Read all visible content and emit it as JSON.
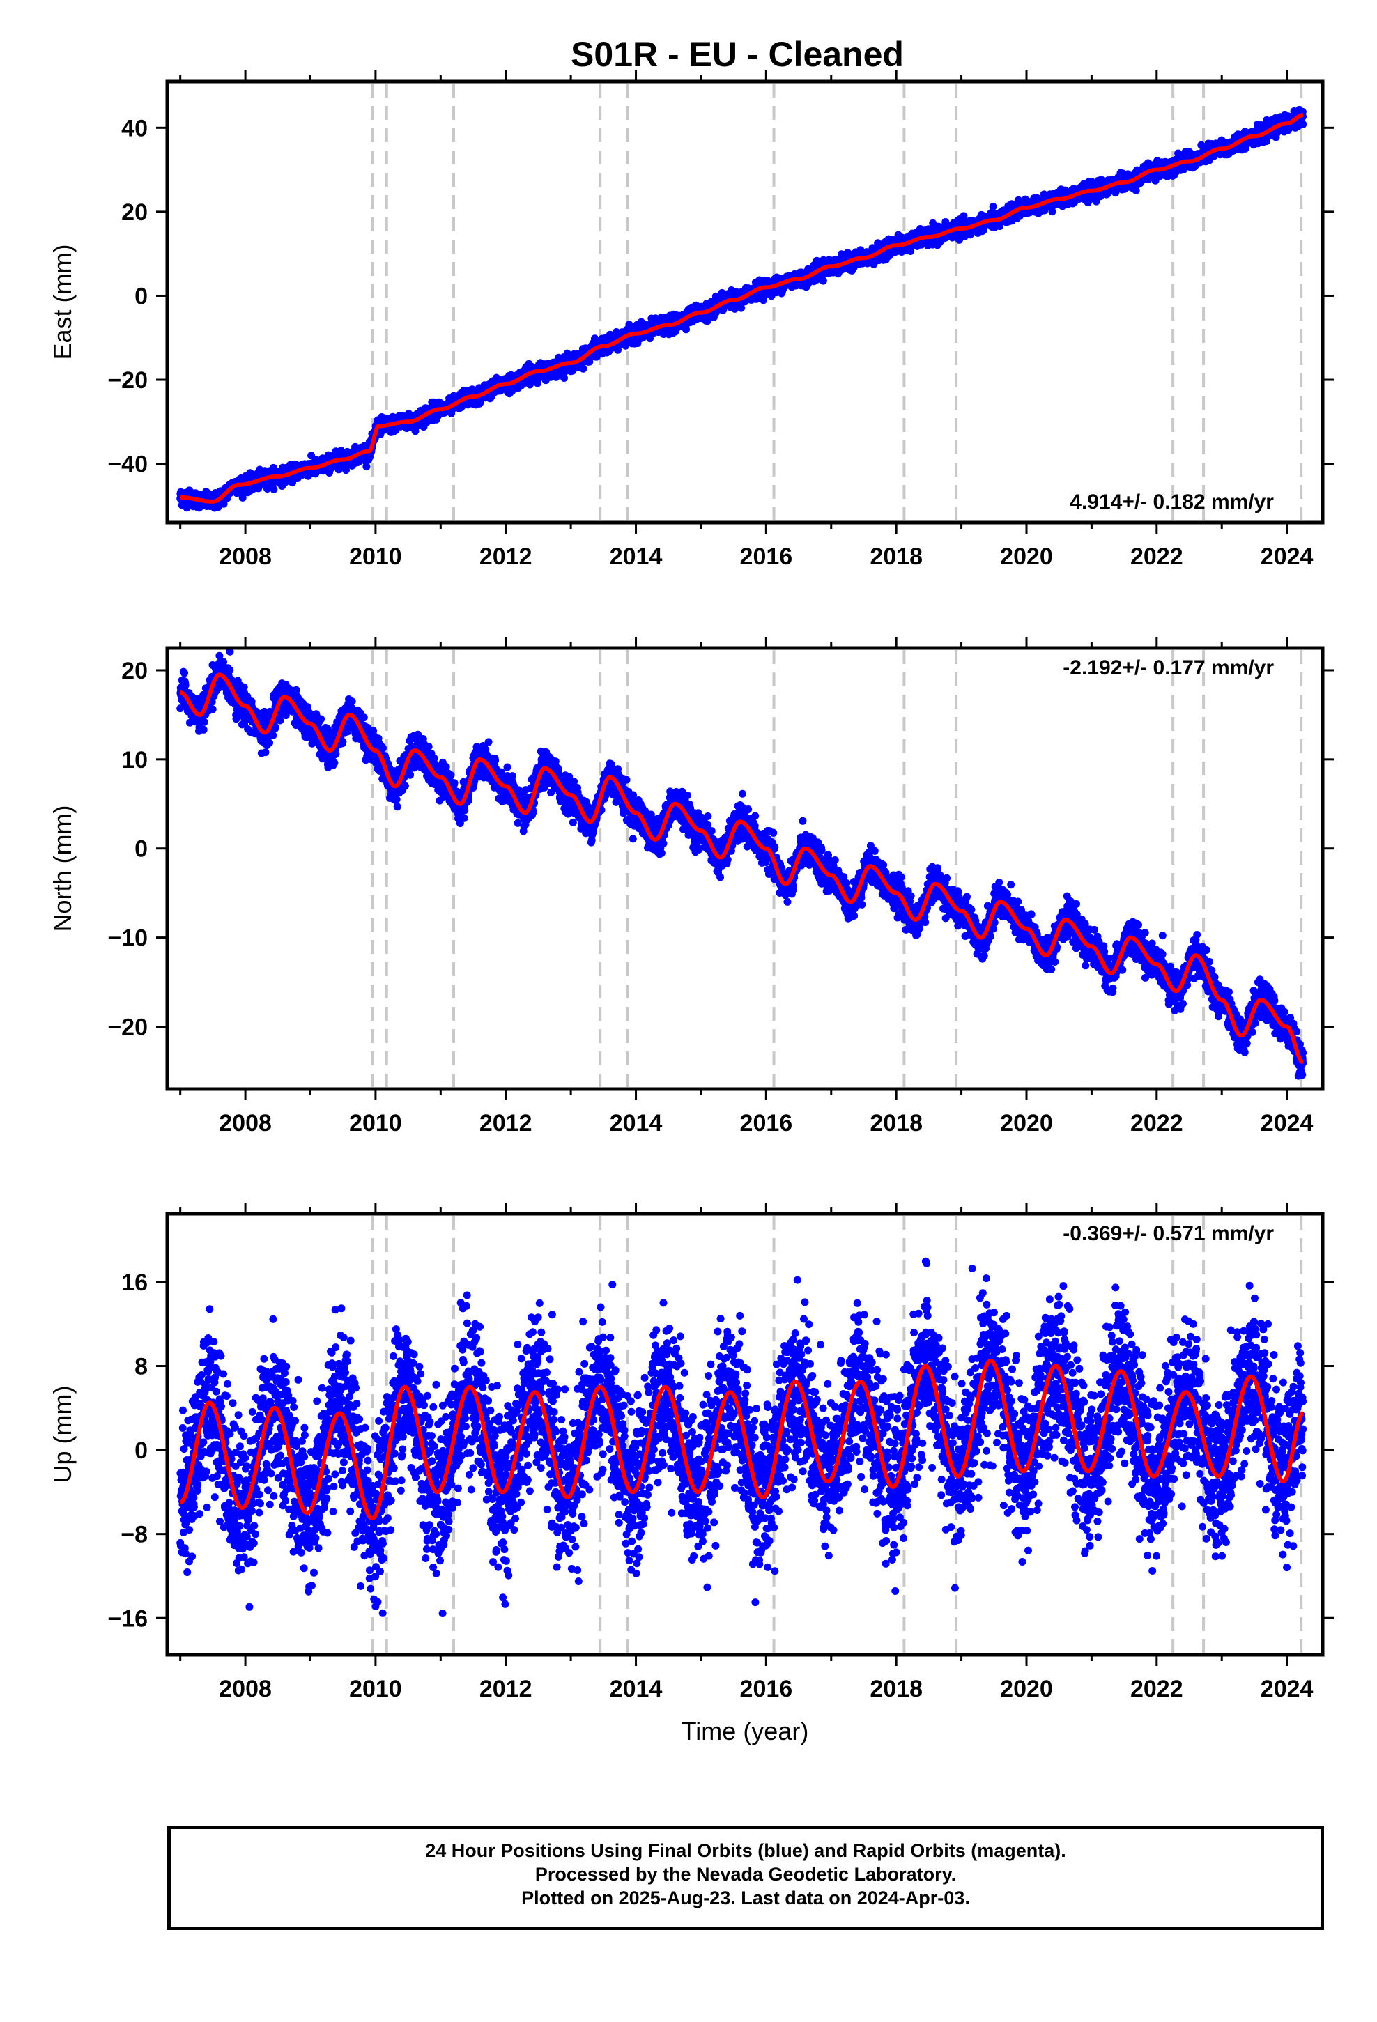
{
  "title": "S01R  - EU - Cleaned",
  "chart_data": [
    {
      "type": "scatter",
      "ylabel": "East (mm)",
      "xlabel": "",
      "xlim": [
        2006.8,
        2024.55
      ],
      "ylim": [
        -54,
        51
      ],
      "yticks": [
        -40,
        -20,
        0,
        20,
        40
      ],
      "xticks": [
        2008,
        2010,
        2012,
        2014,
        2016,
        2018,
        2020,
        2022,
        2024
      ],
      "rate_label": "4.914+/- 0.182 mm/yr",
      "rate_position": "bottom-right",
      "model": {
        "start_value": -48.0,
        "slope": 4.914,
        "seasonal_amplitude": 1.0,
        "steps": [
          [
            2009.95,
            2.5
          ]
        ]
      },
      "series": [
        {
          "kind": "daily_positions",
          "color": "#0000ff",
          "scatter_sd": 0.9
        },
        {
          "kind": "model_fit",
          "color": "#ff0000"
        }
      ],
      "trace_points": [
        [
          2007.0,
          -48
        ],
        [
          2007.5,
          -49
        ],
        [
          2007.9,
          -45
        ],
        [
          2008.5,
          -43
        ],
        [
          2009.0,
          -41
        ],
        [
          2009.5,
          -39
        ],
        [
          2009.9,
          -37
        ],
        [
          2010.05,
          -31
        ],
        [
          2010.5,
          -30
        ],
        [
          2011.0,
          -27
        ],
        [
          2011.5,
          -24
        ],
        [
          2012.0,
          -21
        ],
        [
          2012.5,
          -18
        ],
        [
          2013.0,
          -16
        ],
        [
          2013.5,
          -12
        ],
        [
          2014.0,
          -9
        ],
        [
          2014.5,
          -7
        ],
        [
          2015.0,
          -4
        ],
        [
          2015.5,
          -1
        ],
        [
          2016.0,
          2
        ],
        [
          2016.5,
          4
        ],
        [
          2017.0,
          7
        ],
        [
          2017.5,
          9
        ],
        [
          2018.0,
          12
        ],
        [
          2018.5,
          14
        ],
        [
          2019.0,
          16
        ],
        [
          2019.5,
          18
        ],
        [
          2020.0,
          21
        ],
        [
          2020.5,
          23
        ],
        [
          2021.0,
          25
        ],
        [
          2021.5,
          27
        ],
        [
          2022.0,
          30
        ],
        [
          2022.5,
          32
        ],
        [
          2023.0,
          35
        ],
        [
          2023.5,
          38
        ],
        [
          2024.0,
          41
        ],
        [
          2024.25,
          43
        ]
      ]
    },
    {
      "type": "scatter",
      "ylabel": "North (mm)",
      "xlabel": "",
      "xlim": [
        2006.8,
        2024.55
      ],
      "ylim": [
        -27,
        22.5
      ],
      "yticks": [
        -20,
        -10,
        0,
        10,
        20
      ],
      "xticks": [
        2008,
        2010,
        2012,
        2014,
        2016,
        2018,
        2020,
        2022,
        2024
      ],
      "rate_label": "-2.192+/- 0.177 mm/yr",
      "rate_position": "top-right",
      "model": {
        "start_value": 17.5,
        "slope": -2.192,
        "seasonal_amplitude": 2.7,
        "steps": []
      },
      "series": [
        {
          "kind": "daily_positions",
          "color": "#0000ff",
          "scatter_sd": 0.9
        },
        {
          "kind": "model_fit",
          "color": "#ff0000"
        }
      ],
      "trace_points": [
        [
          2007.0,
          17.5
        ],
        [
          2007.3,
          15
        ],
        [
          2007.6,
          19.5
        ],
        [
          2008.0,
          16
        ],
        [
          2008.3,
          13
        ],
        [
          2008.6,
          17
        ],
        [
          2009.0,
          14
        ],
        [
          2009.3,
          11
        ],
        [
          2009.6,
          15
        ],
        [
          2010.0,
          11
        ],
        [
          2010.3,
          7
        ],
        [
          2010.6,
          11
        ],
        [
          2011.0,
          8
        ],
        [
          2011.3,
          5
        ],
        [
          2011.6,
          10
        ],
        [
          2012.0,
          7
        ],
        [
          2012.3,
          4
        ],
        [
          2012.6,
          9
        ],
        [
          2013.0,
          6
        ],
        [
          2013.3,
          3
        ],
        [
          2013.6,
          8
        ],
        [
          2014.0,
          4
        ],
        [
          2014.3,
          1
        ],
        [
          2014.6,
          5
        ],
        [
          2015.0,
          2
        ],
        [
          2015.3,
          -1
        ],
        [
          2015.6,
          3
        ],
        [
          2016.0,
          0
        ],
        [
          2016.3,
          -4
        ],
        [
          2016.6,
          0
        ],
        [
          2017.0,
          -3
        ],
        [
          2017.3,
          -6
        ],
        [
          2017.6,
          -2
        ],
        [
          2018.0,
          -5
        ],
        [
          2018.3,
          -8
        ],
        [
          2018.6,
          -4
        ],
        [
          2019.0,
          -7
        ],
        [
          2019.3,
          -10
        ],
        [
          2019.6,
          -6
        ],
        [
          2020.0,
          -9
        ],
        [
          2020.3,
          -12
        ],
        [
          2020.6,
          -8
        ],
        [
          2021.0,
          -11
        ],
        [
          2021.3,
          -14
        ],
        [
          2021.6,
          -10
        ],
        [
          2022.0,
          -13
        ],
        [
          2022.3,
          -16
        ],
        [
          2022.6,
          -12
        ],
        [
          2023.0,
          -17
        ],
        [
          2023.3,
          -21
        ],
        [
          2023.6,
          -17
        ],
        [
          2024.0,
          -20
        ],
        [
          2024.25,
          -24
        ]
      ]
    },
    {
      "type": "scatter",
      "ylabel": "Up (mm)",
      "xlabel": "Time (year)",
      "xlim": [
        2006.8,
        2024.55
      ],
      "ylim": [
        -19.5,
        22.5
      ],
      "yticks": [
        -16,
        -8,
        0,
        8,
        16
      ],
      "xticks": [
        2008,
        2010,
        2012,
        2014,
        2016,
        2018,
        2020,
        2022,
        2024
      ],
      "rate_label": "-0.369+/- 0.571 mm/yr",
      "rate_position": "top-right",
      "model": {
        "start_value": -0.5,
        "slope": -0.369,
        "seasonal_amplitude": 5.2,
        "steps": []
      },
      "series": [
        {
          "kind": "daily_positions",
          "color": "#0000ff",
          "scatter_sd": 3.6
        },
        {
          "kind": "model_fit",
          "color": "#ff0000"
        }
      ],
      "trace_points": [
        [
          2007.0,
          -5
        ],
        [
          2007.45,
          4.5
        ],
        [
          2007.95,
          -5.5
        ],
        [
          2008.45,
          4
        ],
        [
          2008.95,
          -6
        ],
        [
          2009.45,
          3.5
        ],
        [
          2009.95,
          -6.5
        ],
        [
          2010.45,
          6
        ],
        [
          2010.95,
          -4
        ],
        [
          2011.45,
          6
        ],
        [
          2011.95,
          -4
        ],
        [
          2012.45,
          5.5
        ],
        [
          2012.95,
          -4.5
        ],
        [
          2013.45,
          6
        ],
        [
          2013.95,
          -4
        ],
        [
          2014.45,
          6
        ],
        [
          2014.95,
          -4
        ],
        [
          2015.45,
          5.5
        ],
        [
          2015.95,
          -4.5
        ],
        [
          2016.45,
          6.5
        ],
        [
          2016.95,
          -3
        ],
        [
          2017.45,
          6.5
        ],
        [
          2017.95,
          -3.5
        ],
        [
          2018.45,
          8
        ],
        [
          2018.95,
          -2.5
        ],
        [
          2019.45,
          8.5
        ],
        [
          2019.95,
          -2
        ],
        [
          2020.45,
          8
        ],
        [
          2020.95,
          -2
        ],
        [
          2021.45,
          7.5
        ],
        [
          2021.95,
          -2.5
        ],
        [
          2022.45,
          5.5
        ],
        [
          2022.95,
          -2.5
        ],
        [
          2023.45,
          7
        ],
        [
          2023.95,
          -3
        ],
        [
          2024.25,
          3.5
        ]
      ]
    }
  ],
  "offset_lines": [
    2009.95,
    2010.17,
    2011.2,
    2013.45,
    2013.87,
    2016.12,
    2018.12,
    2018.92,
    2022.25,
    2022.72,
    2024.22
  ],
  "footer": {
    "line1": "24 Hour Positions Using Final Orbits (blue) and Rapid Orbits (magenta).",
    "line2": "Processed by the Nevada Geodetic Laboratory.",
    "line3": "Plotted on 2025-Aug-23. Last data on 2024-Apr-03."
  }
}
